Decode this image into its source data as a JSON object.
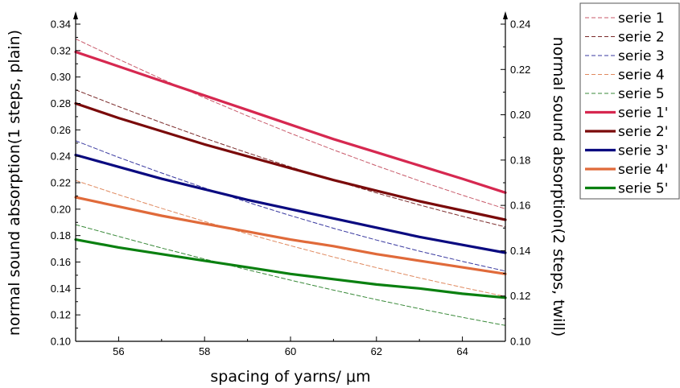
{
  "chart_data": {
    "type": "line",
    "xlabel": "spacing of yarns/ μm",
    "ylabel_left": "normal sound absorption(1 steps, plain)",
    "ylabel_right": "normal sound absorption(2 steps, twill)",
    "xlim": [
      55,
      65
    ],
    "ylim_left": [
      0.1,
      0.34
    ],
    "ylim_right": [
      0.1,
      0.24
    ],
    "x_ticks": [
      56,
      58,
      60,
      62,
      64
    ],
    "y_ticks_left": [
      0.1,
      0.12,
      0.14,
      0.16,
      0.18,
      0.2,
      0.22,
      0.24,
      0.26,
      0.28,
      0.3,
      0.32,
      0.34
    ],
    "y_ticks_right": [
      0.1,
      0.12,
      0.14,
      0.16,
      0.18,
      0.2,
      0.22,
      0.24
    ],
    "grid": false,
    "legend_position": "outside-right",
    "x": [
      55,
      56,
      57,
      58,
      59,
      60,
      61,
      62,
      63,
      64,
      65
    ],
    "series": [
      {
        "name": "serie 1",
        "axis": "right",
        "style": "dashed",
        "color": "#c85a6a",
        "values": [
          0.2335,
          0.2245,
          0.2158,
          0.2075,
          0.1995,
          0.1918,
          0.1845,
          0.1775,
          0.1708,
          0.1645,
          0.1585
        ]
      },
      {
        "name": "serie 2",
        "axis": "right",
        "style": "dashed",
        "color": "#7a2a2a",
        "values": [
          0.211,
          0.2036,
          0.1965,
          0.1897,
          0.1832,
          0.177,
          0.1711,
          0.1655,
          0.1602,
          0.1552,
          0.1505
        ]
      },
      {
        "name": "serie 3",
        "axis": "right",
        "style": "dashed",
        "color": "#3a3aa0",
        "values": [
          0.1885,
          0.1812,
          0.1743,
          0.1677,
          0.1614,
          0.1555,
          0.1499,
          0.1447,
          0.1398,
          0.1353,
          0.131
        ]
      },
      {
        "name": "serie 4",
        "axis": "right",
        "style": "dashed",
        "color": "#e08a60",
        "values": [
          0.171,
          0.1647,
          0.1587,
          0.1529,
          0.1474,
          0.1422,
          0.1372,
          0.1325,
          0.128,
          0.1238,
          0.1198
        ]
      },
      {
        "name": "serie 5",
        "axis": "right",
        "style": "dashed",
        "color": "#3a8a3a",
        "values": [
          0.1515,
          0.1463,
          0.1412,
          0.1363,
          0.1316,
          0.127,
          0.1226,
          0.1184,
          0.1144,
          0.1106,
          0.107
        ]
      },
      {
        "name": "serie 1'",
        "axis": "left",
        "style": "solid",
        "color": "#d62850",
        "values": [
          0.319,
          0.308,
          0.297,
          0.286,
          0.275,
          0.264,
          0.253,
          0.243,
          0.233,
          0.223,
          0.2125
        ]
      },
      {
        "name": "serie 2'",
        "axis": "left",
        "style": "solid",
        "color": "#7a0a0a",
        "values": [
          0.28,
          0.269,
          0.259,
          0.249,
          0.24,
          0.231,
          0.222,
          0.214,
          0.206,
          0.199,
          0.192
        ]
      },
      {
        "name": "serie 3'",
        "axis": "left",
        "style": "solid",
        "color": "#0a0a80",
        "values": [
          0.241,
          0.232,
          0.223,
          0.215,
          0.207,
          0.2,
          0.193,
          0.186,
          0.179,
          0.173,
          0.167
        ]
      },
      {
        "name": "serie 4'",
        "axis": "left",
        "style": "solid",
        "color": "#e06a3a",
        "values": [
          0.209,
          0.202,
          0.195,
          0.189,
          0.183,
          0.177,
          0.172,
          0.166,
          0.161,
          0.156,
          0.151
        ]
      },
      {
        "name": "serie 5'",
        "axis": "left",
        "style": "solid",
        "color": "#0a8010",
        "values": [
          0.177,
          0.171,
          0.166,
          0.161,
          0.156,
          0.151,
          0.147,
          0.143,
          0.14,
          0.136,
          0.133
        ]
      }
    ]
  }
}
